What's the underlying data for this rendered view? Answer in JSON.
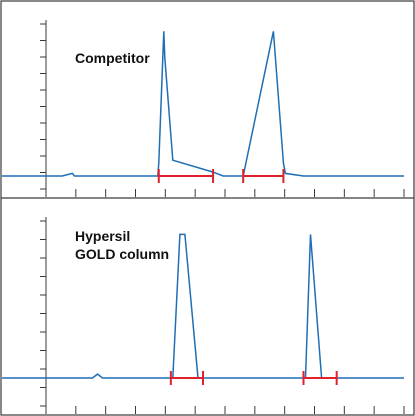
{
  "chart_data": [
    {
      "type": "line",
      "panel_label": [
        "Competitor"
      ],
      "title": "",
      "xlabel": "",
      "ylabel": "",
      "x_ticks": 13,
      "y_ticks": 11,
      "line_color": "#1f6fb5",
      "marker_color": "#e0202a",
      "series": [
        {
          "x": [
            0.0,
            0.6,
            0.7,
            0.72,
            0.8,
            0.95,
            1.55,
            1.56,
            1.61,
            1.62,
            1.7,
            2.1,
            2.2,
            2.22,
            2.3,
            2.4,
            2.7,
            2.8,
            2.82,
            3.0,
            3.5,
            4.0
          ],
          "y": [
            0.0,
            0.0,
            0.2,
            0.0,
            0.0,
            0.0,
            0.0,
            1.0,
            11.0,
            9.0,
            1.2,
            0.3,
            0.0,
            0.0,
            0.0,
            0.0,
            11.0,
            1.0,
            0.2,
            0.0,
            0.0,
            0.0
          ]
        }
      ],
      "integration_markers": [
        {
          "start": 1.56,
          "end": 2.1
        },
        {
          "start": 2.4,
          "end": 2.8
        }
      ]
    },
    {
      "type": "line",
      "panel_label": [
        "Hypersil",
        "GOLD column"
      ],
      "title": "",
      "xlabel": "",
      "ylabel": "",
      "x_ticks": 13,
      "y_ticks": 11,
      "line_color": "#1f6fb5",
      "marker_color": "#e0202a",
      "series": [
        {
          "x": [
            0.0,
            0.9,
            0.95,
            1.0,
            1.6,
            1.7,
            1.77,
            1.82,
            1.95,
            2.05,
            2.9,
            3.02,
            3.07,
            3.18,
            3.4,
            4.0
          ],
          "y": [
            0.0,
            0.0,
            0.3,
            0.0,
            0.0,
            0.0,
            11.0,
            11.0,
            0.0,
            0.0,
            0.0,
            0.0,
            11.0,
            0.0,
            0.0,
            0.0
          ]
        }
      ],
      "integration_markers": [
        {
          "start": 1.68,
          "end": 2.0
        },
        {
          "start": 3.0,
          "end": 3.33
        }
      ]
    }
  ]
}
